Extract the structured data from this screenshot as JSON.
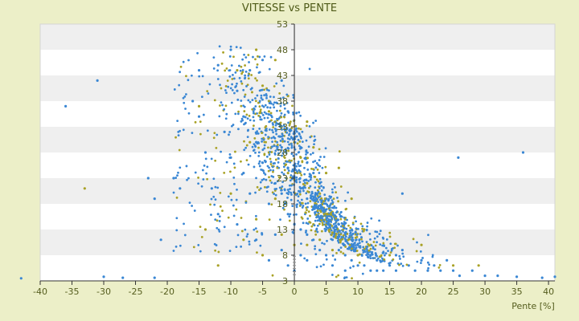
{
  "chart_data": {
    "type": "scatter",
    "title": "VITESSE vs PENTE",
    "xlabel": "Pente [%]",
    "ylabel": "",
    "xlim": [
      -40,
      41
    ],
    "ylim": [
      3,
      53
    ],
    "x_ticks": [
      "-40",
      "-35",
      "-30",
      "-25",
      "-20",
      "-15",
      "-10",
      "-5",
      "0",
      "5",
      "10",
      "15",
      "20",
      "25",
      "30",
      "35",
      "40"
    ],
    "y_ticks": [
      "3",
      "8",
      "13",
      "18",
      "23",
      "28",
      "33",
      "38",
      "43",
      "48",
      "53"
    ],
    "grid": "horizontal bands",
    "series": [
      {
        "color": "#3a87d4",
        "description_points": "approximate sample of blue points",
        "points": [
          [
            -43,
            3.5
          ],
          [
            -36,
            37
          ],
          [
            -31,
            42
          ],
          [
            -30,
            3.8
          ],
          [
            -27,
            3.6
          ],
          [
            -23,
            23
          ],
          [
            -22,
            19
          ],
          [
            -22,
            3.6
          ],
          [
            -21,
            11
          ],
          [
            -19,
            23
          ],
          [
            -18,
            21
          ],
          [
            -16,
            38
          ],
          [
            -15,
            44
          ],
          [
            -15,
            35
          ],
          [
            -14,
            28
          ],
          [
            -13,
            21
          ],
          [
            -12,
            45
          ],
          [
            -12,
            16
          ],
          [
            -11,
            32
          ],
          [
            -10,
            48
          ],
          [
            -10,
            27
          ],
          [
            -9,
            40
          ],
          [
            -9,
            14
          ],
          [
            -8,
            35
          ],
          [
            -8,
            24
          ],
          [
            -7,
            44
          ],
          [
            -7,
            20
          ],
          [
            -6,
            30
          ],
          [
            -6,
            11
          ],
          [
            -5,
            46
          ],
          [
            -5,
            26
          ],
          [
            -4,
            38
          ],
          [
            -4,
            18
          ],
          [
            -4,
            7
          ],
          [
            -3,
            34
          ],
          [
            -3,
            22
          ],
          [
            -3,
            12
          ],
          [
            -2,
            42
          ],
          [
            -2,
            29
          ],
          [
            -2,
            20
          ],
          [
            -2,
            9
          ],
          [
            -1,
            36
          ],
          [
            -1,
            25
          ],
          [
            -1,
            16
          ],
          [
            -1,
            6
          ],
          [
            0,
            32
          ],
          [
            0,
            23
          ],
          [
            0,
            14
          ],
          [
            0,
            5
          ],
          [
            1,
            29
          ],
          [
            1,
            21
          ],
          [
            1,
            13
          ],
          [
            1,
            8
          ],
          [
            2,
            26
          ],
          [
            2,
            19
          ],
          [
            2,
            12
          ],
          [
            2,
            7
          ],
          [
            3,
            24
          ],
          [
            3,
            17
          ],
          [
            3,
            11
          ],
          [
            4,
            22
          ],
          [
            4,
            15
          ],
          [
            4,
            9
          ],
          [
            5,
            19
          ],
          [
            5,
            13
          ],
          [
            5,
            8
          ],
          [
            6,
            16
          ],
          [
            6,
            11
          ],
          [
            6,
            6
          ],
          [
            7,
            14
          ],
          [
            7,
            9
          ],
          [
            8,
            12
          ],
          [
            8,
            8
          ],
          [
            8,
            5
          ],
          [
            9,
            11
          ],
          [
            9,
            7
          ],
          [
            10,
            10
          ],
          [
            10,
            6
          ],
          [
            11,
            9
          ],
          [
            11,
            6
          ],
          [
            12,
            8
          ],
          [
            12,
            5
          ],
          [
            13,
            7
          ],
          [
            13,
            5
          ],
          [
            14,
            7
          ],
          [
            14,
            5
          ],
          [
            15,
            6
          ],
          [
            16,
            8
          ],
          [
            16,
            5
          ],
          [
            17,
            9
          ],
          [
            17,
            20
          ],
          [
            18,
            6
          ],
          [
            19,
            5
          ],
          [
            20,
            7
          ],
          [
            21,
            5
          ],
          [
            22,
            6
          ],
          [
            23,
            5
          ],
          [
            24,
            7
          ],
          [
            25,
            5
          ],
          [
            25.8,
            27
          ],
          [
            26,
            4
          ],
          [
            28,
            5
          ],
          [
            30,
            4
          ],
          [
            32,
            4
          ],
          [
            35,
            3.8
          ],
          [
            36,
            28
          ],
          [
            39,
            3.6
          ],
          [
            41,
            3.8
          ]
        ]
      },
      {
        "color": "#a9a227",
        "description_points": "approximate sample of olive points",
        "points": [
          [
            -33,
            21
          ],
          [
            -15,
            37
          ],
          [
            -14,
            13
          ],
          [
            -12,
            6
          ],
          [
            -10,
            20
          ],
          [
            -9,
            44
          ],
          [
            -8,
            11
          ],
          [
            -7,
            30
          ],
          [
            -6,
            48
          ],
          [
            -6,
            15
          ],
          [
            -5,
            41
          ],
          [
            -5,
            8
          ],
          [
            -4,
            28
          ],
          [
            -4,
            36
          ],
          [
            -3,
            46
          ],
          [
            -3,
            19
          ],
          [
            -2,
            33
          ],
          [
            -2,
            12
          ],
          [
            -1,
            39
          ],
          [
            -1,
            24
          ],
          [
            0,
            30
          ],
          [
            0,
            10
          ],
          [
            1,
            27
          ],
          [
            1,
            18
          ],
          [
            2,
            34
          ],
          [
            2,
            22
          ],
          [
            2,
            10
          ],
          [
            3,
            29
          ],
          [
            3,
            14
          ],
          [
            4,
            20
          ],
          [
            4,
            11
          ],
          [
            5,
            24
          ],
          [
            5,
            16
          ],
          [
            6,
            18
          ],
          [
            6,
            9
          ],
          [
            7,
            25
          ],
          [
            7,
            12
          ],
          [
            8,
            15
          ],
          [
            9,
            19
          ],
          [
            10,
            8
          ],
          [
            11,
            13
          ],
          [
            12,
            10
          ],
          [
            15,
            8
          ],
          [
            20,
            10
          ],
          [
            25,
            6
          ],
          [
            29,
            6
          ]
        ]
      }
    ]
  }
}
